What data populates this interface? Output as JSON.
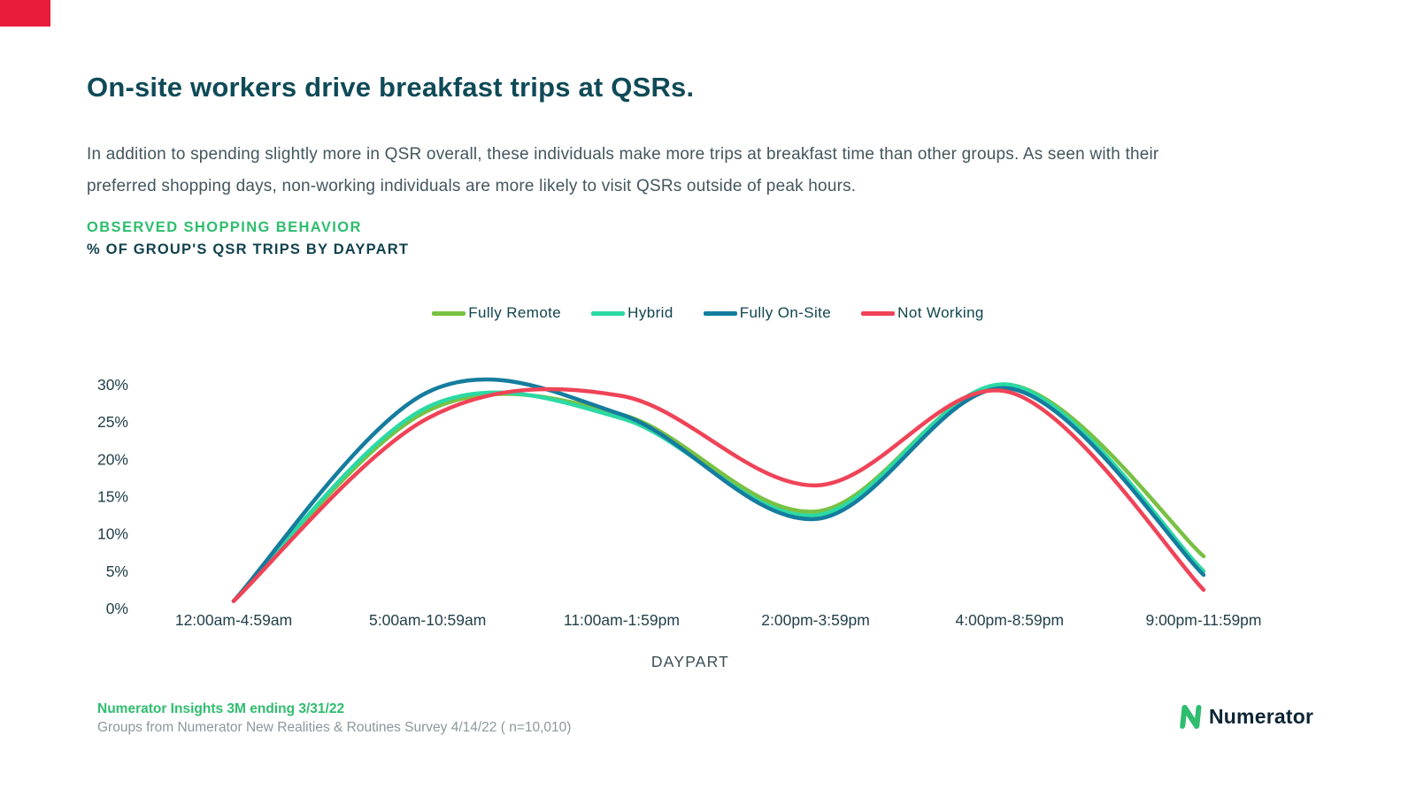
{
  "page": {
    "title": "On-site workers drive breakfast trips at QSRs.",
    "body": "In addition to spending slightly more in QSR overall, these individuals make more trips at breakfast time than other groups. As seen with their preferred shopping days, non-working individuals are more likely to visit QSRs outside of peak hours.",
    "eyebrow": "OBSERVED SHOPPING BEHAVIOR",
    "subtitle": "% OF GROUP'S QSR TRIPS BY DAYPART"
  },
  "colors": {
    "corner_flag": "#E91D3B",
    "title": "#0F4A57",
    "accent_green": "#2EBD6E",
    "tick_label": "#23404B"
  },
  "chart_data": {
    "type": "line",
    "title": "% OF GROUP'S QSR TRIPS BY DAYPART",
    "xlabel": "DAYPART",
    "ylabel": "% of group's QSR trips",
    "ylim": [
      0,
      30
    ],
    "yticks": [
      0,
      5,
      10,
      15,
      20,
      25,
      30
    ],
    "ytick_suffix": "%",
    "grid": false,
    "legend_position": "top",
    "categories": [
      "12:00am-4:59am",
      "5:00am-10:59am",
      "11:00am-1:59pm",
      "2:00pm-3:59pm",
      "4:00pm-8:59pm",
      "9:00pm-11:59pm"
    ],
    "series": [
      {
        "name": "Fully Remote",
        "color": "#79C143",
        "values": [
          1,
          26.5,
          26,
          13,
          30,
          7
        ]
      },
      {
        "name": "Hybrid",
        "color": "#2BD9A4",
        "values": [
          1,
          27,
          25.5,
          12.5,
          30,
          5
        ]
      },
      {
        "name": "Fully On-Site",
        "color": "#157C9E",
        "values": [
          1,
          29,
          26,
          12,
          29.5,
          4.5
        ]
      },
      {
        "name": "Not Working",
        "color": "#F04357",
        "values": [
          1,
          25.5,
          28.5,
          16.5,
          29,
          2.5
        ]
      }
    ]
  },
  "footer": {
    "source_bold": "Numerator Insights 3M ending 3/31/22",
    "source_detail": "Groups from Numerator New Realities & Routines Survey 4/14/22 ( n=10,010)",
    "brand": "Numerator"
  }
}
